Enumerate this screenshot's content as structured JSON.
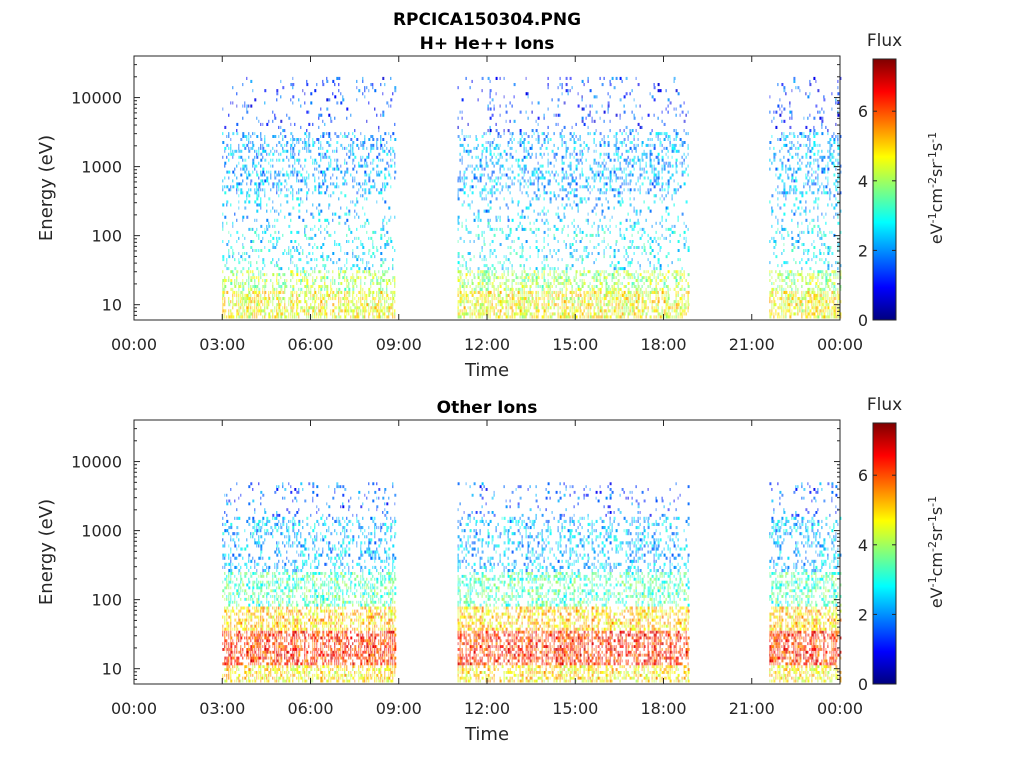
{
  "figure_title": "RPCICA150304.PNG",
  "colors": {
    "axis": "#262626",
    "colormap": [
      "#00007f",
      "#0000ff",
      "#007fff",
      "#00ffff",
      "#7fff7f",
      "#ffff00",
      "#ff7f00",
      "#ff0000",
      "#7f0000"
    ]
  },
  "chart_data": [
    {
      "type": "heatmap",
      "title": "H+ He++ Ions",
      "xlabel": "Time",
      "ylabel": "Energy (eV)",
      "x_ticks": [
        "00:00",
        "03:00",
        "06:00",
        "09:00",
        "12:00",
        "15:00",
        "18:00",
        "21:00",
        "00:00"
      ],
      "x_range_hours": [
        0,
        24
      ],
      "y_scale": "log",
      "y_ticks": [
        "10",
        "100",
        "1000",
        "10000"
      ],
      "y_range": [
        6,
        40000
      ],
      "colorbar": {
        "title": "Flux",
        "label": "eV-1cm-2sr-1s-1",
        "ticks": [
          "0",
          "2",
          "4",
          "6"
        ],
        "range": [
          0,
          7.5
        ]
      },
      "data_intervals_hours": [
        [
          3.0,
          8.9
        ],
        [
          11.0,
          18.9
        ],
        [
          21.6,
          24.0
        ]
      ],
      "bands": [
        {
          "log_e": [
            0.8,
            1.2
          ],
          "value": 4.6,
          "density": 0.8
        },
        {
          "log_e": [
            1.2,
            1.5
          ],
          "value": 4.0,
          "density": 0.55
        },
        {
          "log_e": [
            1.5,
            2.2
          ],
          "value": 2.7,
          "density": 0.22
        },
        {
          "log_e": [
            2.2,
            2.6
          ],
          "value": 2.3,
          "density": 0.18
        },
        {
          "log_e": [
            2.6,
            3.5
          ],
          "value": 2.2,
          "density": 0.35
        },
        {
          "log_e": [
            3.5,
            4.3
          ],
          "value": 1.4,
          "density": 0.1
        }
      ]
    },
    {
      "type": "heatmap",
      "title": "Other Ions",
      "xlabel": "Time",
      "ylabel": "Energy (eV)",
      "x_ticks": [
        "00:00",
        "03:00",
        "06:00",
        "09:00",
        "12:00",
        "15:00",
        "18:00",
        "21:00",
        "00:00"
      ],
      "x_range_hours": [
        0,
        24
      ],
      "y_scale": "log",
      "y_ticks": [
        "10",
        "100",
        "1000",
        "10000"
      ],
      "y_range": [
        6,
        40000
      ],
      "colorbar": {
        "title": "Flux",
        "label": "eV-1cm-2sr-1s-1",
        "ticks": [
          "0",
          "2",
          "4",
          "6"
        ],
        "range": [
          0,
          7.5
        ]
      },
      "data_intervals_hours": [
        [
          3.0,
          8.9
        ],
        [
          11.0,
          18.9
        ],
        [
          21.6,
          24.0
        ]
      ],
      "bands": [
        {
          "log_e": [
            0.8,
            1.05
          ],
          "value": 4.8,
          "density": 0.7
        },
        {
          "log_e": [
            1.05,
            1.55
          ],
          "value": 6.2,
          "density": 0.8
        },
        {
          "log_e": [
            1.55,
            1.9
          ],
          "value": 5.0,
          "density": 0.7
        },
        {
          "log_e": [
            1.9,
            2.4
          ],
          "value": 3.4,
          "density": 0.55
        },
        {
          "log_e": [
            2.4,
            3.2
          ],
          "value": 2.3,
          "density": 0.35
        },
        {
          "log_e": [
            3.2,
            3.7
          ],
          "value": 1.6,
          "density": 0.12
        }
      ]
    }
  ]
}
